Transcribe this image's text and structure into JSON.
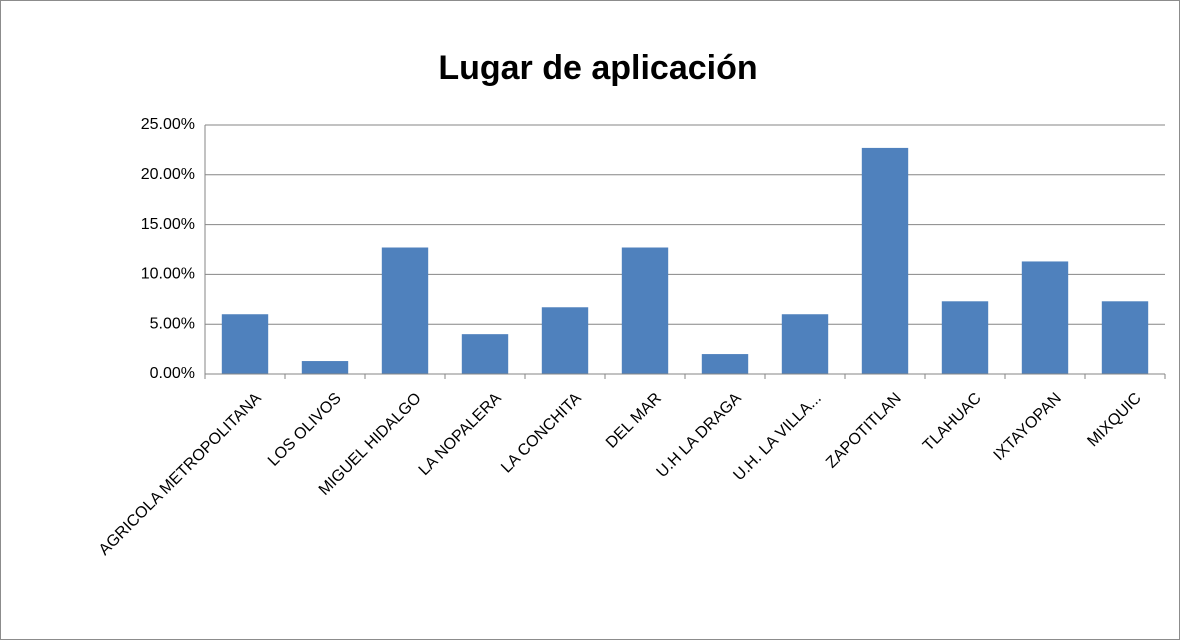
{
  "chart_data": {
    "type": "bar",
    "title": "Lugar de aplicación",
    "categories": [
      "AGRICOLA METROPOLITANA",
      "LOS OLIVOS",
      "MIGUEL HIDALGO",
      "LA NOPALERA",
      "LA CONCHITA",
      "DEL MAR",
      "U.H LA DRAGA",
      "U.H. LA VILLA...",
      "ZAPOTITLAN",
      "TLAHUAC",
      "IXTAYOPAN",
      "MIXQUIC"
    ],
    "values": [
      6.0,
      1.3,
      12.7,
      4.0,
      6.7,
      12.7,
      2.0,
      6.0,
      22.7,
      7.3,
      11.3,
      7.3
    ],
    "color": "#4f81bd",
    "ylim": [
      0,
      25
    ],
    "yticks": [
      {
        "value": 0,
        "label": "0.00%"
      },
      {
        "value": 5,
        "label": "5.00%"
      },
      {
        "value": 10,
        "label": "10.00%"
      },
      {
        "value": 15,
        "label": "15.00%"
      },
      {
        "value": 20,
        "label": "20.00%"
      },
      {
        "value": 25,
        "label": "25.00%"
      }
    ],
    "grid": true
  }
}
